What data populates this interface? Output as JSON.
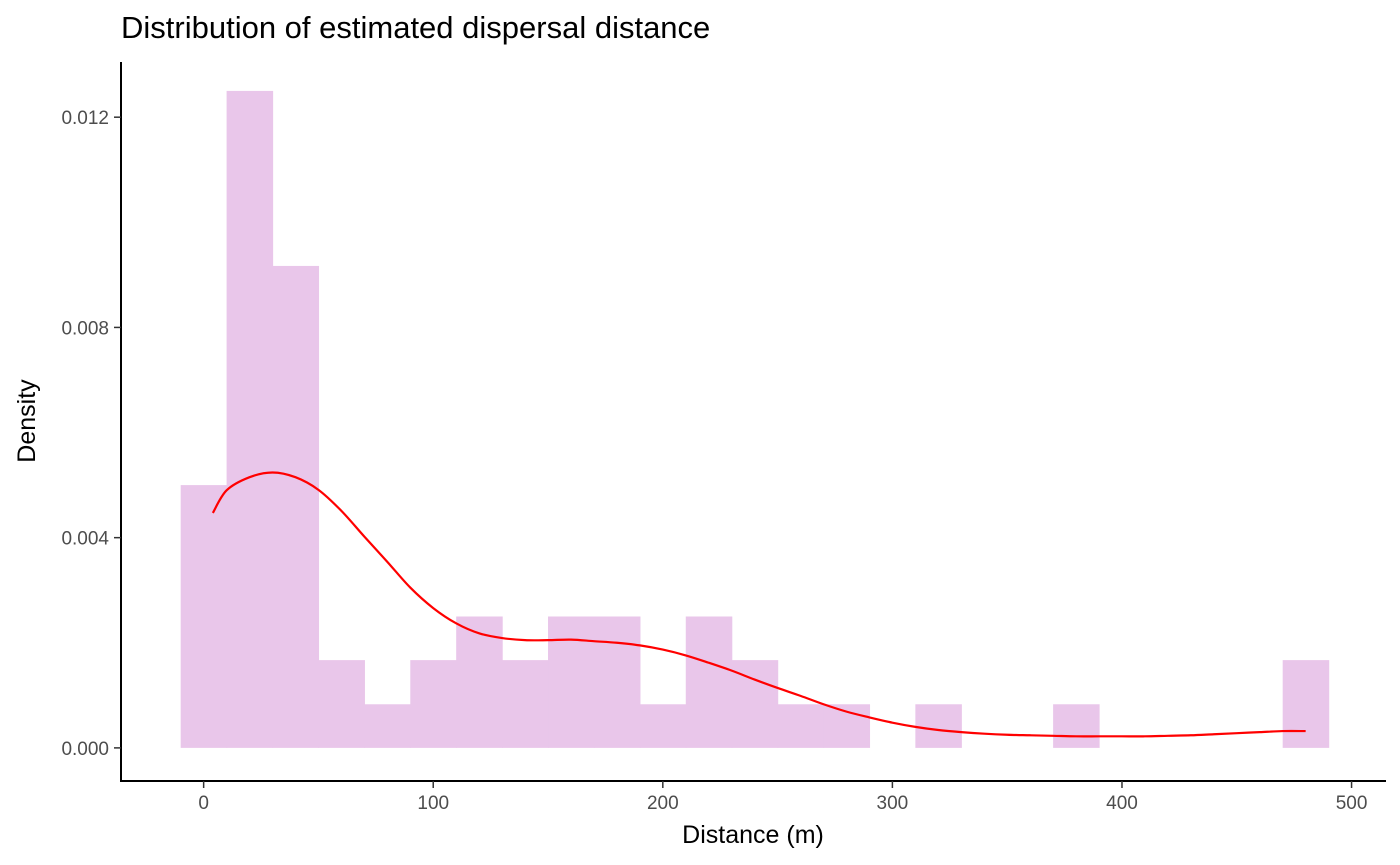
{
  "chart_data": {
    "type": "bar",
    "title": "Distribution of estimated dispersal distance",
    "xlabel": "Distance (m)",
    "ylabel": "Density",
    "xlim": [
      -36,
      515
    ],
    "ylim": [
      -0.00063,
      0.01305
    ],
    "x_ticks": [
      0,
      100,
      200,
      300,
      400,
      500
    ],
    "x_tick_labels": [
      "0",
      "100",
      "200",
      "300",
      "400",
      "500"
    ],
    "y_ticks": [
      0.0,
      0.004,
      0.008,
      0.012
    ],
    "y_tick_labels": [
      "0.000",
      "0.004",
      "0.008",
      "0.012"
    ],
    "grid": false,
    "legend": "none",
    "bin_width": 20,
    "series": [
      {
        "type": "histogram",
        "color": "#e9c6ea",
        "bins": [
          {
            "x0": -10,
            "x1": 10,
            "value": 0.005
          },
          {
            "x0": 10,
            "x1": 30,
            "value": 0.0125
          },
          {
            "x0": 30,
            "x1": 50,
            "value": 0.00917
          },
          {
            "x0": 50,
            "x1": 70,
            "value": 0.00167
          },
          {
            "x0": 70,
            "x1": 90,
            "value": 0.00083
          },
          {
            "x0": 90,
            "x1": 110,
            "value": 0.00167
          },
          {
            "x0": 110,
            "x1": 130,
            "value": 0.0025
          },
          {
            "x0": 130,
            "x1": 150,
            "value": 0.00167
          },
          {
            "x0": 150,
            "x1": 170,
            "value": 0.0025
          },
          {
            "x0": 170,
            "x1": 190,
            "value": 0.0025
          },
          {
            "x0": 190,
            "x1": 210,
            "value": 0.00083
          },
          {
            "x0": 210,
            "x1": 230,
            "value": 0.0025
          },
          {
            "x0": 230,
            "x1": 250,
            "value": 0.00167
          },
          {
            "x0": 250,
            "x1": 270,
            "value": 0.00083
          },
          {
            "x0": 270,
            "x1": 290,
            "value": 0.00083
          },
          {
            "x0": 290,
            "x1": 310,
            "value": 0.0
          },
          {
            "x0": 310,
            "x1": 330,
            "value": 0.00083
          },
          {
            "x0": 330,
            "x1": 350,
            "value": 0.0
          },
          {
            "x0": 350,
            "x1": 370,
            "value": 0.0
          },
          {
            "x0": 370,
            "x1": 390,
            "value": 0.00083
          },
          {
            "x0": 390,
            "x1": 410,
            "value": 0.0
          },
          {
            "x0": 410,
            "x1": 430,
            "value": 0.0
          },
          {
            "x0": 430,
            "x1": 450,
            "value": 0.0
          },
          {
            "x0": 450,
            "x1": 470,
            "value": 0.0
          },
          {
            "x0": 470,
            "x1": 490,
            "value": 0.00167
          }
        ]
      },
      {
        "type": "line",
        "color": "#ff0000",
        "x": [
          4,
          10,
          20,
          30,
          40,
          50,
          60,
          70,
          80,
          90,
          100,
          110,
          120,
          130,
          140,
          150,
          160,
          170,
          180,
          190,
          200,
          210,
          220,
          230,
          240,
          250,
          260,
          270,
          280,
          290,
          300,
          310,
          320,
          330,
          340,
          350,
          360,
          370,
          380,
          390,
          400,
          410,
          420,
          430,
          440,
          450,
          460,
          470,
          480
        ],
        "y": [
          0.00447,
          0.0049,
          0.00515,
          0.00524,
          0.00515,
          0.00491,
          0.00451,
          0.00402,
          0.00354,
          0.00305,
          0.00266,
          0.00237,
          0.00218,
          0.00209,
          0.00205,
          0.00205,
          0.00206,
          0.00203,
          0.002,
          0.00195,
          0.00187,
          0.00176,
          0.00162,
          0.00147,
          0.0013,
          0.00114,
          0.00099,
          0.00083,
          0.00069,
          0.00058,
          0.00048,
          0.0004,
          0.00034,
          0.0003,
          0.00027,
          0.00025,
          0.00024,
          0.00023,
          0.00022,
          0.00022,
          0.00022,
          0.00022,
          0.00023,
          0.00024,
          0.00026,
          0.00028,
          0.0003,
          0.00032,
          0.00032
        ]
      }
    ]
  }
}
